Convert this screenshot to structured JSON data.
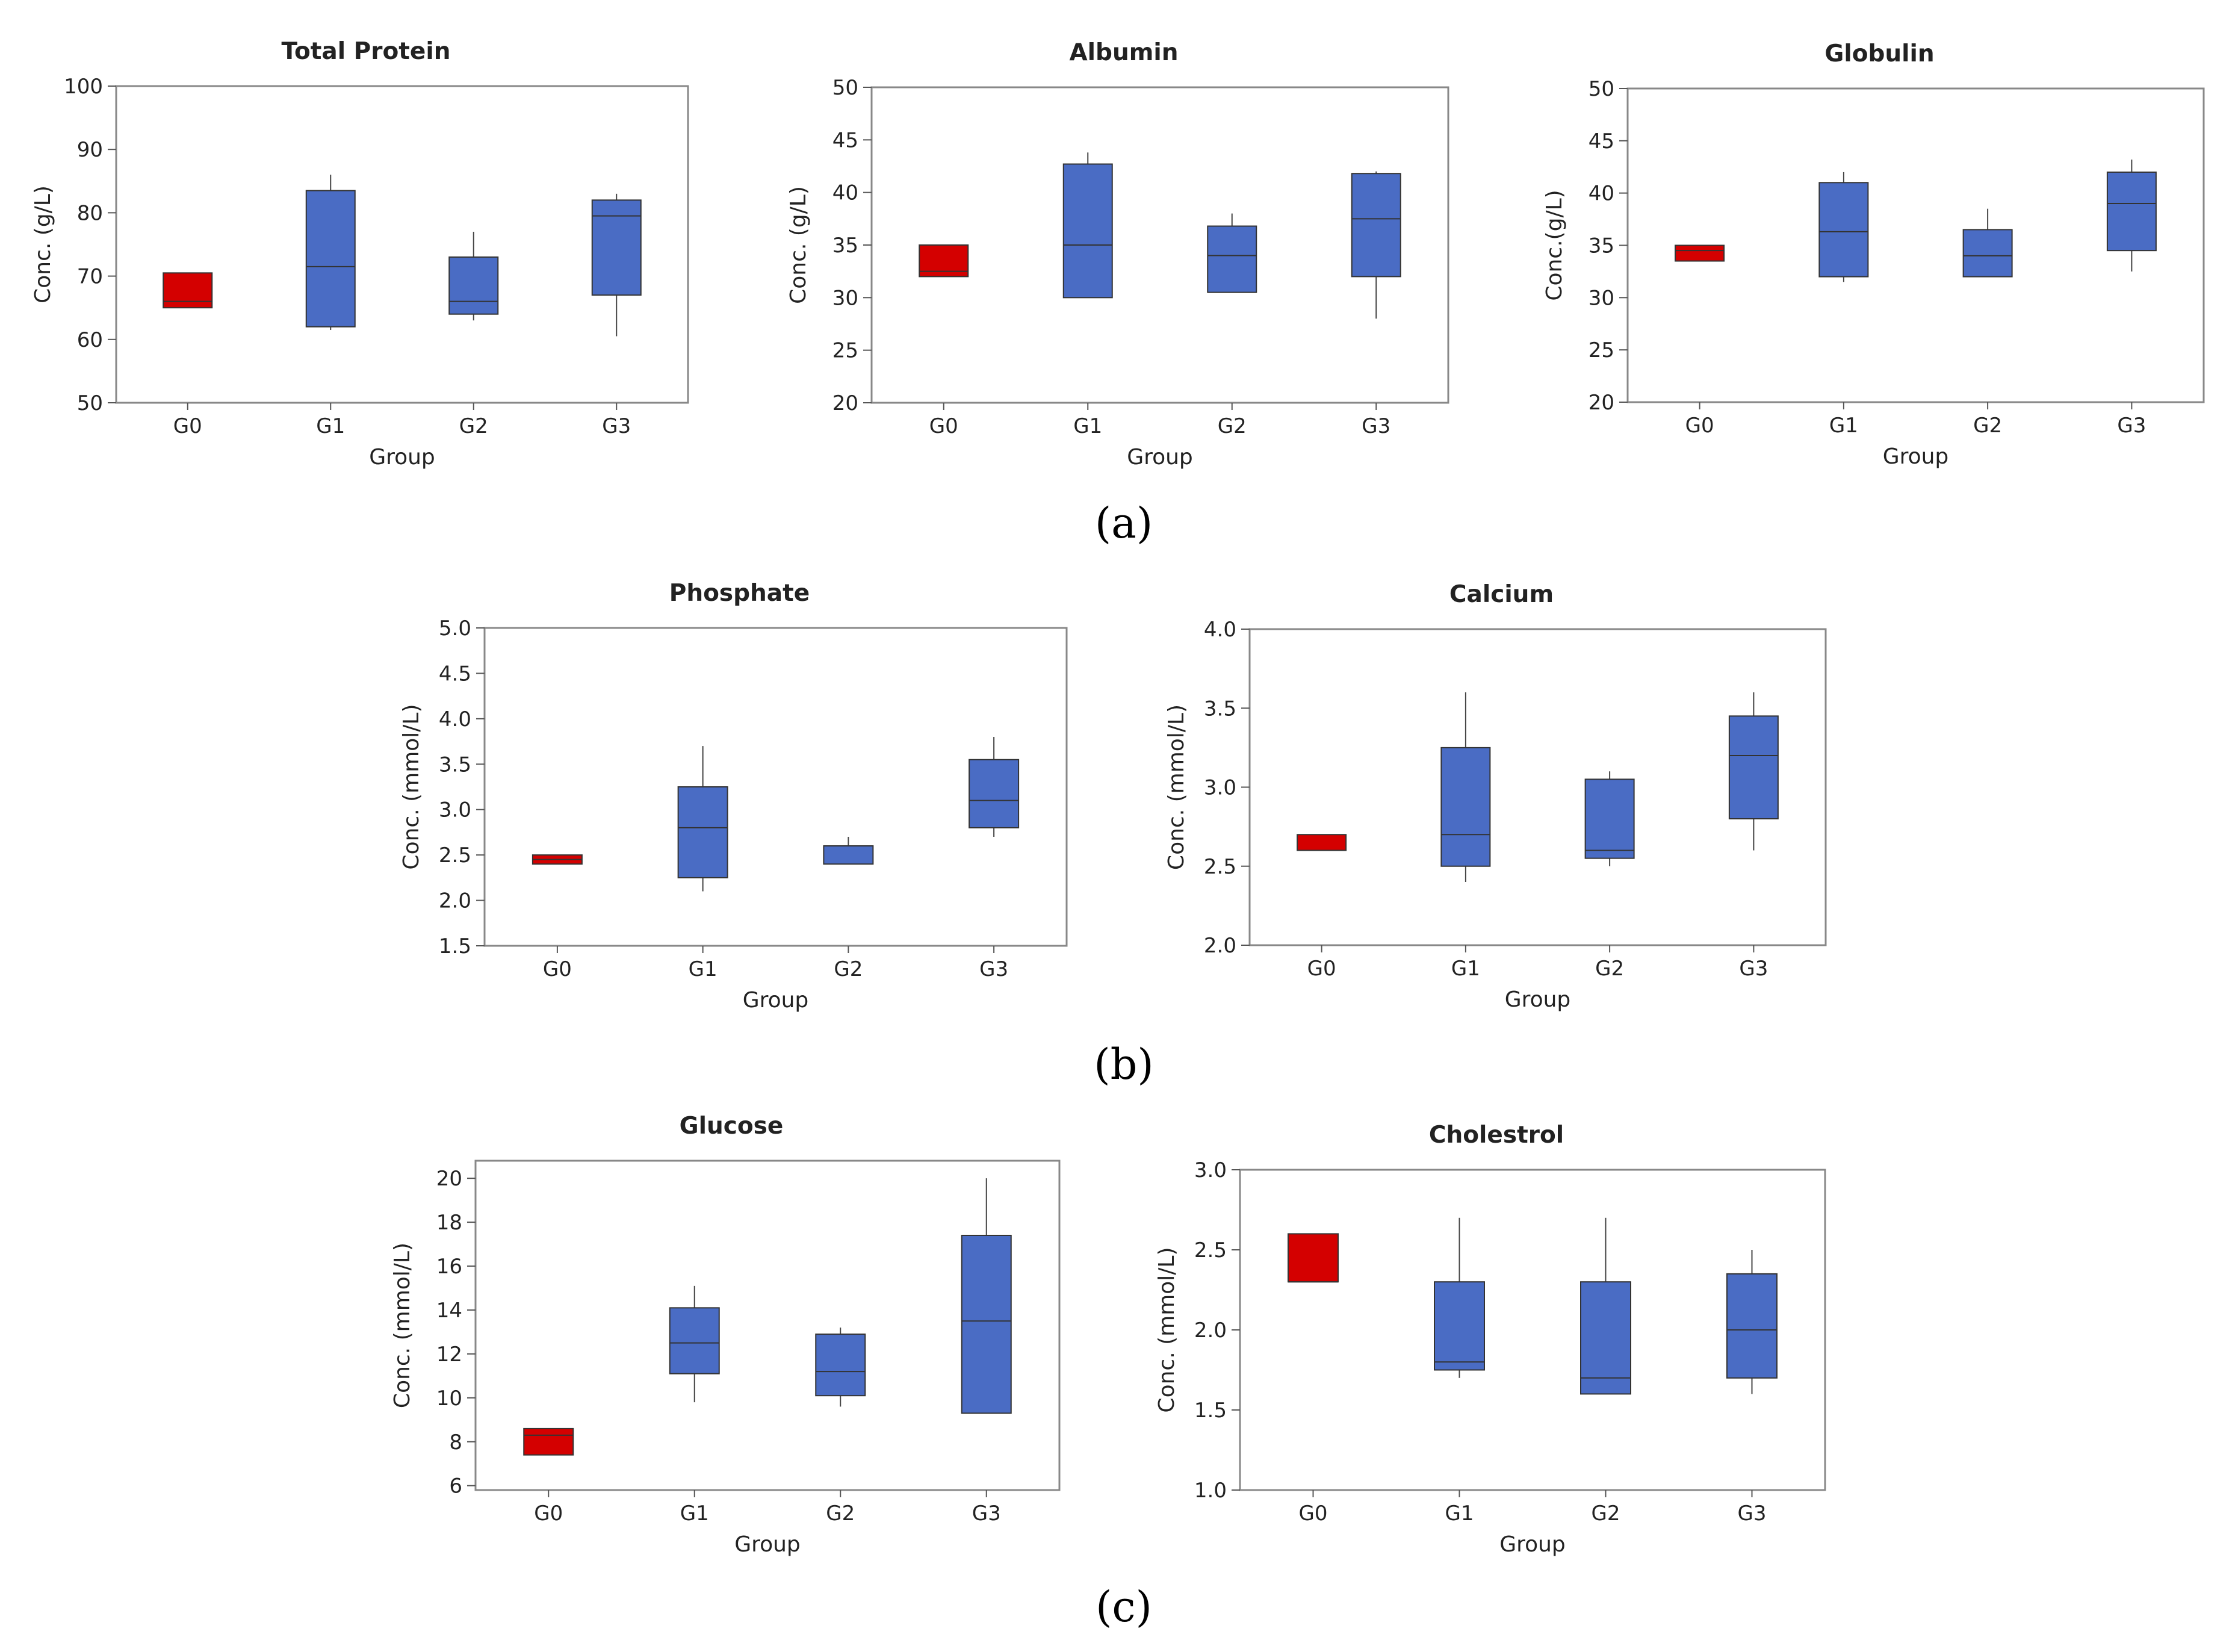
{
  "colors": {
    "control": "#D40000",
    "treatment": "#4A6CC4"
  },
  "panels": [
    "(a)",
    "(b)",
    "(c)"
  ],
  "chart_data": [
    {
      "type": "box",
      "title": "Total Protein",
      "xlabel": "Group",
      "ylabel": "Conc. (g/L)",
      "categories": [
        "G0",
        "G1",
        "G2",
        "G3"
      ],
      "ylim": [
        50,
        100
      ],
      "yticks": [
        50,
        60,
        70,
        80,
        90,
        100
      ],
      "ytick_labels": [
        "50",
        "60",
        "70",
        "80",
        "90",
        "100"
      ],
      "boxes": [
        {
          "min": 65,
          "q1": 65,
          "median": 66,
          "q3": 70.5,
          "max": 70.5
        },
        {
          "min": 61.5,
          "q1": 62,
          "median": 71.5,
          "q3": 83.5,
          "max": 86
        },
        {
          "min": 63,
          "q1": 64,
          "median": 66,
          "q3": 73,
          "max": 77
        },
        {
          "min": 60.5,
          "q1": 67,
          "median": 79.5,
          "q3": 82,
          "max": 83
        }
      ]
    },
    {
      "type": "box",
      "title": "Albumin",
      "xlabel": "Group",
      "ylabel": "Conc. (g/L)",
      "categories": [
        "G0",
        "G1",
        "G2",
        "G3"
      ],
      "ylim": [
        20,
        50
      ],
      "yticks": [
        20,
        25,
        30,
        35,
        40,
        45,
        50
      ],
      "ytick_labels": [
        "20",
        "25",
        "30",
        "35",
        "40",
        "45",
        "50"
      ],
      "boxes": [
        {
          "min": 32,
          "q1": 32,
          "median": 32.5,
          "q3": 35,
          "max": 35
        },
        {
          "min": 30,
          "q1": 30,
          "median": 35,
          "q3": 42.7,
          "max": 43.8
        },
        {
          "min": 30.5,
          "q1": 30.5,
          "median": 34,
          "q3": 36.8,
          "max": 38
        },
        {
          "min": 28,
          "q1": 32,
          "median": 37.5,
          "q3": 41.8,
          "max": 42
        }
      ]
    },
    {
      "type": "box",
      "title": "Globulin",
      "xlabel": "Group",
      "ylabel": "Conc.(g/L)",
      "categories": [
        "G0",
        "G1",
        "G2",
        "G3"
      ],
      "ylim": [
        20,
        50
      ],
      "yticks": [
        20,
        25,
        30,
        35,
        40,
        45,
        50
      ],
      "ytick_labels": [
        "20",
        "25",
        "30",
        "35",
        "40",
        "45",
        "50"
      ],
      "boxes": [
        {
          "min": 33.5,
          "q1": 33.5,
          "median": 34.5,
          "q3": 35,
          "max": 35
        },
        {
          "min": 31.5,
          "q1": 32,
          "median": 36.3,
          "q3": 41,
          "max": 42
        },
        {
          "min": 32,
          "q1": 32,
          "median": 34,
          "q3": 36.5,
          "max": 38.5
        },
        {
          "min": 32.5,
          "q1": 34.5,
          "median": 39,
          "q3": 42,
          "max": 43.2
        }
      ]
    },
    {
      "type": "box",
      "title": "Phosphate",
      "xlabel": "Group",
      "ylabel": "Conc. (mmol/L)",
      "categories": [
        "G0",
        "G1",
        "G2",
        "G3"
      ],
      "ylim": [
        1.5,
        5.0
      ],
      "yticks": [
        1.5,
        2.0,
        2.5,
        3.0,
        3.5,
        4.0,
        4.5,
        5.0
      ],
      "ytick_labels": [
        "1.5",
        "2.0",
        "2.5",
        "3.0",
        "3.5",
        "4.0",
        "4.5",
        "5.0"
      ],
      "boxes": [
        {
          "min": 2.4,
          "q1": 2.4,
          "median": 2.45,
          "q3": 2.5,
          "max": 2.5
        },
        {
          "min": 2.1,
          "q1": 2.25,
          "median": 2.8,
          "q3": 3.25,
          "max": 3.7
        },
        {
          "min": 2.4,
          "q1": 2.4,
          "median": 2.6,
          "q3": 2.6,
          "max": 2.7
        },
        {
          "min": 2.7,
          "q1": 2.8,
          "median": 3.1,
          "q3": 3.55,
          "max": 3.8
        }
      ]
    },
    {
      "type": "box",
      "title": "Calcium",
      "xlabel": "Group",
      "ylabel": "Conc. (mmol/L)",
      "categories": [
        "G0",
        "G1",
        "G2",
        "G3"
      ],
      "ylim": [
        2.0,
        4.0
      ],
      "yticks": [
        2.0,
        2.5,
        3.0,
        3.5,
        4.0
      ],
      "ytick_labels": [
        "2.0",
        "2.5",
        "3.0",
        "3.5",
        "4.0"
      ],
      "boxes": [
        {
          "min": 2.6,
          "q1": 2.6,
          "median": 2.6,
          "q3": 2.7,
          "max": 2.7
        },
        {
          "min": 2.4,
          "q1": 2.5,
          "median": 2.7,
          "q3": 3.25,
          "max": 3.6
        },
        {
          "min": 2.5,
          "q1": 2.55,
          "median": 2.6,
          "q3": 3.05,
          "max": 3.1
        },
        {
          "min": 2.6,
          "q1": 2.8,
          "median": 3.2,
          "q3": 3.45,
          "max": 3.6
        }
      ]
    },
    {
      "type": "box",
      "title": "Glucose",
      "xlabel": "Group",
      "ylabel": "Conc. (mmol/L)",
      "categories": [
        "G0",
        "G1",
        "G2",
        "G3"
      ],
      "ylim": [
        5.8,
        20.8
      ],
      "yticks": [
        6,
        8,
        10,
        12,
        14,
        16,
        18,
        20
      ],
      "ytick_labels": [
        "6",
        "8",
        "10",
        "12",
        "14",
        "16",
        "18",
        "20"
      ],
      "boxes": [
        {
          "min": 7.4,
          "q1": 7.4,
          "median": 8.3,
          "q3": 8.6,
          "max": 8.6
        },
        {
          "min": 9.8,
          "q1": 11.1,
          "median": 12.5,
          "q3": 14.1,
          "max": 15.1
        },
        {
          "min": 9.6,
          "q1": 10.1,
          "median": 11.2,
          "q3": 12.9,
          "max": 13.2
        },
        {
          "min": 9.3,
          "q1": 9.3,
          "median": 13.5,
          "q3": 17.4,
          "max": 20
        }
      ]
    },
    {
      "type": "box",
      "title": "Cholestrol",
      "xlabel": "Group",
      "ylabel": "Conc. (mmol/L)",
      "categories": [
        "G0",
        "G1",
        "G2",
        "G3"
      ],
      "ylim": [
        1.0,
        3.0
      ],
      "yticks": [
        1.0,
        1.5,
        2.0,
        2.5,
        3.0
      ],
      "ytick_labels": [
        "1.0",
        "1.5",
        "2.0",
        "2.5",
        "3.0"
      ],
      "boxes": [
        {
          "min": 2.3,
          "q1": 2.3,
          "median": 2.3,
          "q3": 2.6,
          "max": 2.6
        },
        {
          "min": 1.7,
          "q1": 1.75,
          "median": 1.8,
          "q3": 2.3,
          "max": 2.7
        },
        {
          "min": 1.6,
          "q1": 1.6,
          "median": 1.7,
          "q3": 2.3,
          "max": 2.7
        },
        {
          "min": 1.6,
          "q1": 1.7,
          "median": 2.0,
          "q3": 2.35,
          "max": 2.5
        }
      ]
    }
  ]
}
